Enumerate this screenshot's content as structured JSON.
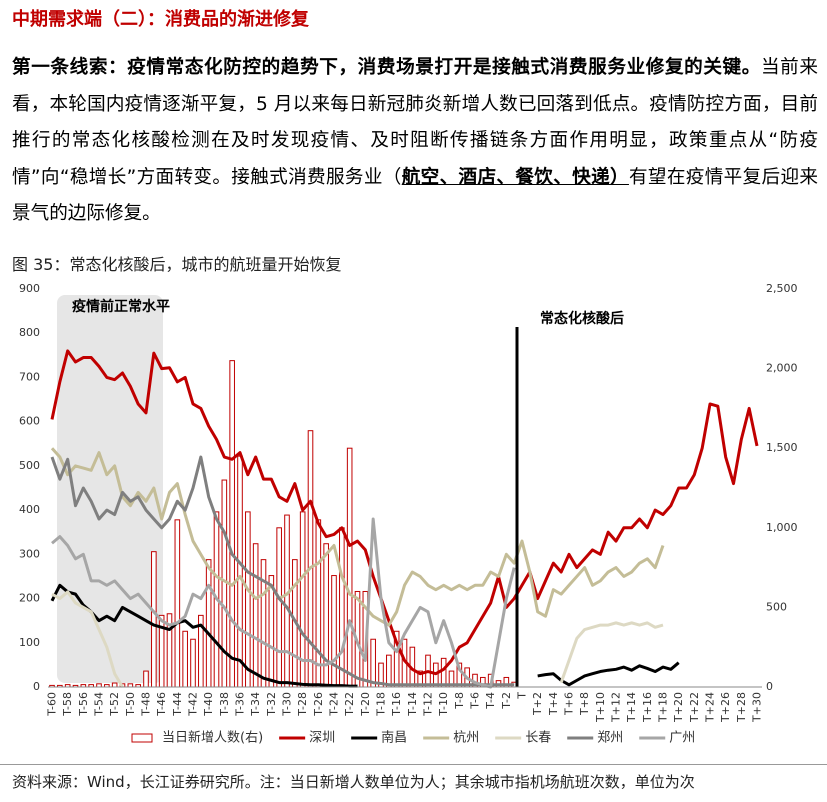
{
  "header": {
    "title": "中期需求端（二）：消费品的渐进修复"
  },
  "paragraph": {
    "lead": "第一条线索：疫情常态化防控的趋势下，消费场景打开是接触式消费服务业修复的关键。",
    "body": "当前来看，本轮国内疫情逐渐平复，5 月以来每日新冠肺炎新增人数已回落到低点。疫情防控方面，目前推行的常态化核酸检测在及时发现疫情、及时阻断传播链条方面作用明显，政策重点从“防疫情”向“稳增长”方面转变。接触式消费服务业（",
    "underlined": "航空、酒店、餐饮、快递）",
    "tail": "有望在疫情平复后迎来景气的边际修复。"
  },
  "figure": {
    "caption": "图 35：常态化核酸后，城市的航班量开始恢复"
  },
  "source": "资料来源：Wind，长江证券研究所。注：当日新增人数单位为人；其余城市指机场航班次数，单位为次",
  "chart_data": {
    "type": "combo",
    "annotations": [
      "疫情前正常水平",
      "常态化核酸后"
    ],
    "categories": [
      "T-60",
      null,
      "T-58",
      null,
      "T-56",
      null,
      "T-54",
      null,
      "T-52",
      null,
      "T-50",
      null,
      "T-48",
      null,
      "T-46",
      null,
      "T-44",
      null,
      "T-42",
      null,
      "T-40",
      null,
      "T-38",
      null,
      "T-36",
      null,
      "T-34",
      null,
      "T-32",
      null,
      "T-30",
      null,
      "T-28",
      null,
      "T-26",
      null,
      "T-24",
      null,
      "T-22",
      null,
      "T-20",
      null,
      "T-18",
      null,
      "T-16",
      null,
      "T-14",
      null,
      "T-12",
      null,
      "T-10",
      null,
      "T-8",
      null,
      "T-6",
      null,
      "T-4",
      null,
      "T-2",
      null,
      "T",
      null,
      "T+2",
      null,
      "T+4",
      null,
      "T+6",
      null,
      "T+8",
      null,
      "T+10",
      null,
      "T+12",
      null,
      "T+14",
      null,
      "T+16",
      null,
      "T+18",
      null,
      "T+20",
      null,
      "T+22",
      null,
      "T+24",
      null,
      "T+26",
      null,
      "T+28",
      null,
      "T+30"
    ],
    "ylim": [
      0,
      900
    ],
    "yticks": [
      0,
      100,
      200,
      300,
      400,
      500,
      600,
      700,
      800,
      900
    ],
    "y2lim": [
      0,
      2500
    ],
    "y2ticks": [
      0,
      500,
      {
        "value": 1000,
        "label": "1,000"
      },
      {
        "value": 1500,
        "label": "1,500"
      },
      {
        "value": 2000,
        "label": "2,000"
      },
      {
        "value": 2500,
        "label": "2,500"
      }
    ],
    "grid": false,
    "series": [
      {
        "name": "当日新增人数(右)",
        "type": "bar",
        "axis": "y2",
        "color": "#c00000",
        "values": [
          10,
          10,
          15,
          10,
          15,
          15,
          20,
          15,
          25,
          20,
          20,
          15,
          100,
          850,
          450,
          460,
          1050,
          350,
          300,
          450,
          800,
          1100,
          1300,
          2050,
          1450,
          1100,
          900,
          800,
          700,
          1000,
          1080,
          800,
          1100,
          1610,
          1050,
          900,
          700,
          1000,
          1500,
          600,
          600,
          300,
          150,
          200,
          350,
          300,
          250,
          100,
          200,
          150,
          180,
          100,
          150,
          120,
          80,
          60,
          80,
          40,
          60,
          30,
          0,
          0,
          0,
          0,
          0,
          0,
          0,
          0,
          0,
          0,
          0,
          0,
          0,
          0,
          0,
          0,
          0,
          0,
          0,
          0,
          0,
          0,
          0,
          0,
          0,
          0,
          0,
          0,
          0,
          0,
          0
        ]
      },
      {
        "name": "深圳",
        "type": "line",
        "color": "#c00000",
        "values": [
          605,
          690,
          760,
          735,
          745,
          745,
          725,
          700,
          695,
          710,
          680,
          640,
          620,
          755,
          720,
          722,
          690,
          700,
          640,
          630,
          590,
          560,
          520,
          515,
          530,
          480,
          520,
          470,
          470,
          430,
          420,
          460,
          400,
          420,
          370,
          340,
          345,
          360,
          320,
          330,
          310,
          250,
          200,
          150,
          100,
          60,
          40,
          30,
          35,
          30,
          40,
          60,
          90,
          100,
          130,
          160,
          190,
          250,
          180,
          200,
          230,
          260,
          200,
          240,
          280,
          260,
          300,
          270,
          290,
          310,
          300,
          350,
          330,
          360,
          360,
          380,
          360,
          400,
          390,
          410,
          450,
          450,
          480,
          540,
          640,
          635,
          520,
          460,
          560,
          630,
          545
        ]
      },
      {
        "name": "南昌",
        "type": "line",
        "color": "#000000",
        "values": [
          195,
          230,
          215,
          210,
          185,
          170,
          150,
          160,
          150,
          180,
          170,
          160,
          150,
          140,
          135,
          130,
          145,
          150,
          135,
          140,
          120,
          100,
          80,
          65,
          60,
          40,
          30,
          20,
          15,
          10,
          10,
          8,
          6,
          5,
          5,
          4,
          3,
          3,
          2,
          2,
          null,
          null,
          null,
          null,
          null,
          null,
          null,
          null,
          null,
          null,
          null,
          null,
          null,
          null,
          null,
          null,
          null,
          null,
          null,
          null,
          null,
          null,
          25,
          28,
          30,
          15,
          5,
          15,
          25,
          30,
          35,
          38,
          40,
          45,
          38,
          48,
          42,
          35,
          45,
          40,
          55,
          null,
          null,
          null,
          null,
          null,
          null,
          null,
          null,
          null,
          null
        ]
      },
      {
        "name": "杭州",
        "type": "line",
        "color": "#c4bd97",
        "values": [
          540,
          520,
          480,
          500,
          495,
          490,
          530,
          480,
          500,
          430,
          410,
          440,
          420,
          450,
          380,
          440,
          460,
          390,
          330,
          300,
          270,
          250,
          240,
          230,
          250,
          220,
          200,
          210,
          230,
          200,
          210,
          230,
          250,
          270,
          280,
          300,
          320,
          250,
          210,
          200,
          180,
          160,
          150,
          140,
          170,
          230,
          260,
          250,
          230,
          220,
          230,
          220,
          230,
          220,
          230,
          230,
          260,
          250,
          300,
          280,
          330,
          260,
          170,
          160,
          220,
          210,
          230,
          250,
          270,
          230,
          240,
          260,
          270,
          250,
          260,
          280,
          290,
          270,
          320,
          null,
          null,
          null,
          null,
          null,
          null,
          null,
          null,
          null,
          null,
          null,
          null
        ]
      },
      {
        "name": "长春",
        "type": "line",
        "color": "#ddd9c3",
        "values": [
          210,
          200,
          215,
          190,
          180,
          170,
          130,
          90,
          30,
          0,
          null,
          null,
          null,
          null,
          null,
          null,
          null,
          null,
          null,
          null,
          null,
          null,
          null,
          null,
          null,
          null,
          null,
          null,
          null,
          null,
          null,
          null,
          null,
          null,
          null,
          null,
          null,
          null,
          null,
          null,
          null,
          null,
          null,
          null,
          null,
          null,
          null,
          null,
          null,
          null,
          null,
          null,
          null,
          null,
          null,
          null,
          null,
          null,
          null,
          null,
          null,
          null,
          null,
          null,
          null,
          10,
          60,
          110,
          130,
          135,
          140,
          140,
          145,
          140,
          145,
          140,
          145,
          135,
          140,
          null,
          null,
          null,
          null,
          null,
          null,
          null,
          null,
          null,
          null,
          null,
          null
        ]
      },
      {
        "name": "郑州",
        "type": "line",
        "color": "#7f7f7f",
        "values": [
          520,
          470,
          515,
          410,
          450,
          420,
          380,
          400,
          390,
          440,
          420,
          430,
          400,
          380,
          360,
          380,
          420,
          400,
          450,
          520,
          430,
          380,
          350,
          300,
          280,
          260,
          250,
          240,
          230,
          200,
          180,
          150,
          120,
          100,
          80,
          60,
          50,
          40,
          30,
          20,
          15,
          10,
          8,
          5,
          5,
          5,
          5,
          5,
          5,
          5,
          5,
          5,
          5,
          5,
          5,
          5,
          5,
          5,
          5,
          5,
          null,
          null,
          null,
          null,
          null,
          null,
          null,
          null,
          null,
          null,
          null,
          null,
          null,
          null,
          null,
          null,
          null,
          null,
          null,
          null,
          null,
          null,
          null,
          null,
          null,
          null,
          null,
          null,
          null,
          null,
          null
        ]
      },
      {
        "name": "广州",
        "type": "line",
        "color": "#a6a6a6",
        "values": [
          325,
          340,
          320,
          290,
          300,
          240,
          240,
          230,
          240,
          220,
          200,
          210,
          190,
          170,
          150,
          140,
          145,
          160,
          210,
          200,
          230,
          200,
          180,
          150,
          130,
          120,
          110,
          100,
          90,
          80,
          80,
          70,
          60,
          60,
          50,
          50,
          60,
          80,
          150,
          100,
          60,
          380,
          200,
          100,
          80,
          120,
          150,
          180,
          170,
          100,
          150,
          100,
          40,
          20,
          10,
          5,
          0,
          100,
          200,
          270,
          null,
          null,
          null,
          null,
          null,
          null,
          null,
          null,
          null,
          null,
          null,
          null,
          null,
          null,
          null,
          null,
          null,
          null,
          null,
          null,
          null,
          null,
          null,
          null,
          null,
          null,
          null,
          null,
          null,
          null,
          null
        ]
      }
    ]
  }
}
